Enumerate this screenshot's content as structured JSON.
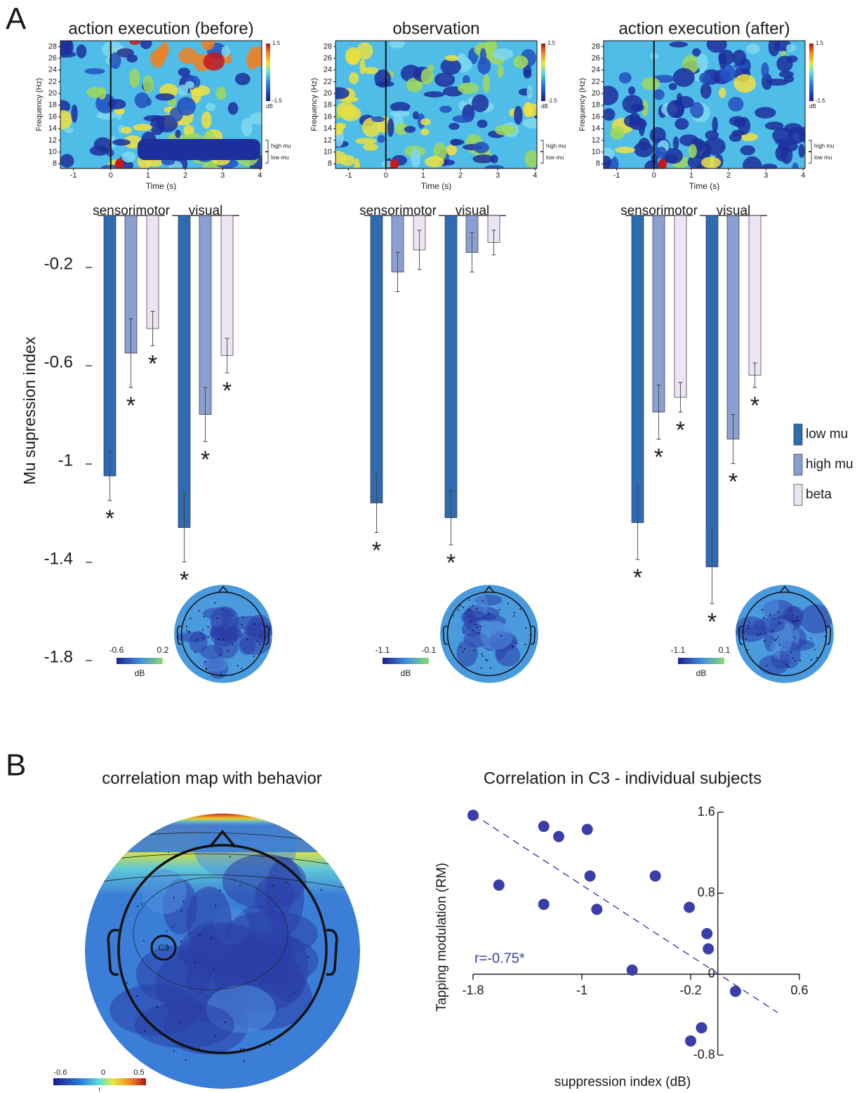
{
  "figure": {
    "panel_labels": [
      "A",
      "B"
    ]
  },
  "chart_data": [
    {
      "type": "spectrogram",
      "title": "action execution (before)",
      "xlabel": "Time (s)",
      "ylabel": "Frequency (Hz)",
      "xlim": [
        -1.35,
        4.05
      ],
      "xticks": [
        -1,
        0,
        1,
        2,
        3,
        4
      ],
      "ylim": [
        7.2,
        29
      ],
      "yticks": [
        8,
        10,
        12,
        14,
        16,
        18,
        20,
        22,
        24,
        26,
        28
      ],
      "event_time": 0,
      "colorbar": {
        "ticks": [
          1.5,
          -1.5
        ],
        "label": "dB"
      },
      "bands": [
        {
          "label": "high mu",
          "range": [
            10,
            12
          ]
        },
        {
          "label": "low mu",
          "range": [
            8,
            10
          ]
        }
      ]
    },
    {
      "type": "spectrogram",
      "title": "observation",
      "xlabel": "Time (s)",
      "ylabel": "Frequency (Hz)",
      "xlim": [
        -1.35,
        4.05
      ],
      "xticks": [
        -1,
        0,
        1,
        2,
        3,
        4
      ],
      "ylim": [
        7.2,
        29
      ],
      "yticks": [
        8,
        10,
        12,
        14,
        16,
        18,
        20,
        22,
        24,
        26,
        28
      ],
      "event_time": 0,
      "colorbar": {
        "ticks": [
          1.5,
          -1.5
        ],
        "label": "dB"
      },
      "bands": [
        {
          "label": "high mu",
          "range": [
            10,
            12
          ]
        },
        {
          "label": "low mu",
          "range": [
            8,
            10
          ]
        }
      ]
    },
    {
      "type": "spectrogram",
      "title": "action execution (after)",
      "xlabel": "Time (s)",
      "ylabel": "Frequency (Hz)",
      "xlim": [
        -1.35,
        4.05
      ],
      "xticks": [
        -1,
        0,
        1,
        2,
        3,
        4
      ],
      "ylim": [
        7.2,
        29
      ],
      "yticks": [
        8,
        10,
        12,
        14,
        16,
        18,
        20,
        22,
        24,
        26,
        28
      ],
      "event_time": 0,
      "colorbar": {
        "ticks": [
          1.5,
          -1.5
        ],
        "label": "dB"
      },
      "bands": [
        {
          "label": "high mu",
          "range": [
            10,
            12
          ]
        },
        {
          "label": "low mu",
          "range": [
            8,
            10
          ]
        }
      ]
    },
    {
      "type": "bar",
      "ylabel": "Mu supression index",
      "ylim": [
        -1.85,
        0
      ],
      "yticks": [
        -0.2,
        -0.6,
        -1,
        -1.4,
        -1.8
      ],
      "sig_label": "*",
      "series": [
        {
          "name": "low mu",
          "color": "#2f6bb3"
        },
        {
          "name": "high mu",
          "color": "#8c9fd3"
        },
        {
          "name": "beta",
          "color": "#ece4f3"
        }
      ],
      "panels": [
        {
          "categories": [
            "sensorimotor",
            "visual"
          ],
          "series": [
            {
              "values": [
                -1.06,
                -1.27
              ],
              "errors": [
                0.1,
                0.14
              ],
              "significant": [
                true,
                true
              ]
            },
            {
              "values": [
                -0.56,
                -0.81
              ],
              "errors": [
                0.14,
                0.11
              ],
              "significant": [
                true,
                true
              ]
            },
            {
              "values": [
                -0.46,
                -0.57
              ],
              "errors": [
                0.07,
                0.07
              ],
              "significant": [
                true,
                true
              ]
            }
          ],
          "topo_colorbar": {
            "ticks": [
              -0.6,
              0.2
            ],
            "label": "dB"
          }
        },
        {
          "categories": [
            "sensorimotor",
            "visual"
          ],
          "series": [
            {
              "values": [
                -1.17,
                -1.23
              ],
              "errors": [
                0.12,
                0.11
              ],
              "significant": [
                true,
                true
              ]
            },
            {
              "values": [
                -0.23,
                -0.15
              ],
              "errors": [
                0.08,
                0.08
              ],
              "significant": [
                false,
                false
              ]
            },
            {
              "values": [
                -0.14,
                -0.11
              ],
              "errors": [
                0.08,
                0.05
              ],
              "significant": [
                false,
                false
              ]
            }
          ],
          "topo_colorbar": {
            "ticks": [
              -1.1,
              -0.1
            ],
            "label": "dB"
          }
        },
        {
          "categories": [
            "sensorimotor",
            "visual"
          ],
          "series": [
            {
              "values": [
                -1.25,
                -1.43
              ],
              "errors": [
                0.15,
                0.15
              ],
              "significant": [
                true,
                true
              ]
            },
            {
              "values": [
                -0.8,
                -0.91
              ],
              "errors": [
                0.11,
                0.1
              ],
              "significant": [
                true,
                true
              ]
            },
            {
              "values": [
                -0.74,
                -0.65
              ],
              "errors": [
                0.06,
                0.05
              ],
              "significant": [
                true,
                true
              ]
            }
          ],
          "topo_colorbar": {
            "ticks": [
              -1.1,
              0.1
            ],
            "label": "dB"
          }
        }
      ]
    },
    {
      "type": "topomap",
      "title": "correlation map with behavior",
      "electrode": "C3",
      "colorbar": {
        "ticks": [
          -0.6,
          0,
          0.5
        ],
        "label": "r"
      }
    },
    {
      "type": "scatter",
      "title": "Correlation in C3 - individual subjects",
      "xlabel": "suppression index (dB)",
      "ylabel": "Tapping modulation (RM)",
      "xlim": [
        -1.8,
        0.6
      ],
      "xticks": [
        -1.8,
        -1,
        -0.2,
        0.6
      ],
      "ylim": [
        -0.8,
        1.6
      ],
      "yticks": [
        1.6,
        0.8,
        0,
        -0.8
      ],
      "color": "#3a3ea8",
      "annotation": "r=-0.75*",
      "x": [
        -1.8,
        -1.61,
        -1.28,
        -1.17,
        -0.96,
        -1.28,
        -0.94,
        -0.89,
        -0.46,
        -0.63,
        -0.21,
        -0.08,
        -0.07,
        0.13,
        -0.12,
        -0.2
      ],
      "y": [
        1.57,
        0.88,
        1.46,
        1.36,
        1.43,
        0.69,
        0.97,
        0.64,
        0.97,
        0.04,
        0.66,
        0.4,
        0.25,
        -0.17,
        -0.53,
        -0.66
      ],
      "fit": {
        "x": [
          -1.8,
          0.44
        ],
        "y": [
          1.58,
          -0.38
        ]
      }
    }
  ]
}
